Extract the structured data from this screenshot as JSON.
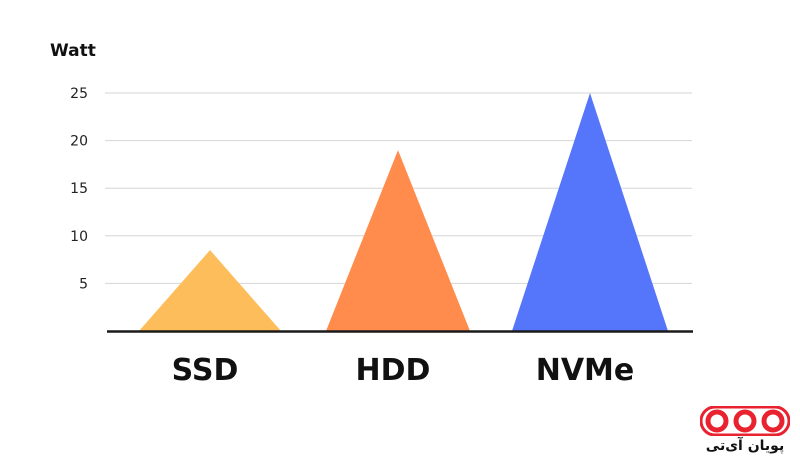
{
  "chart_data": {
    "type": "bar",
    "ylabel": "Watt",
    "categories": [
      "SSD",
      "HDD",
      "NVMe"
    ],
    "values": [
      8.5,
      19,
      25
    ],
    "yticks": [
      5,
      10,
      15,
      20,
      25
    ],
    "ylim": [
      0,
      25
    ],
    "grid": true,
    "colors": [
      "#FDBD5A",
      "#FF8C4C",
      "#5576FB"
    ]
  },
  "logo": {
    "text": "پویان آی‌تی",
    "color": "#E8222E"
  }
}
